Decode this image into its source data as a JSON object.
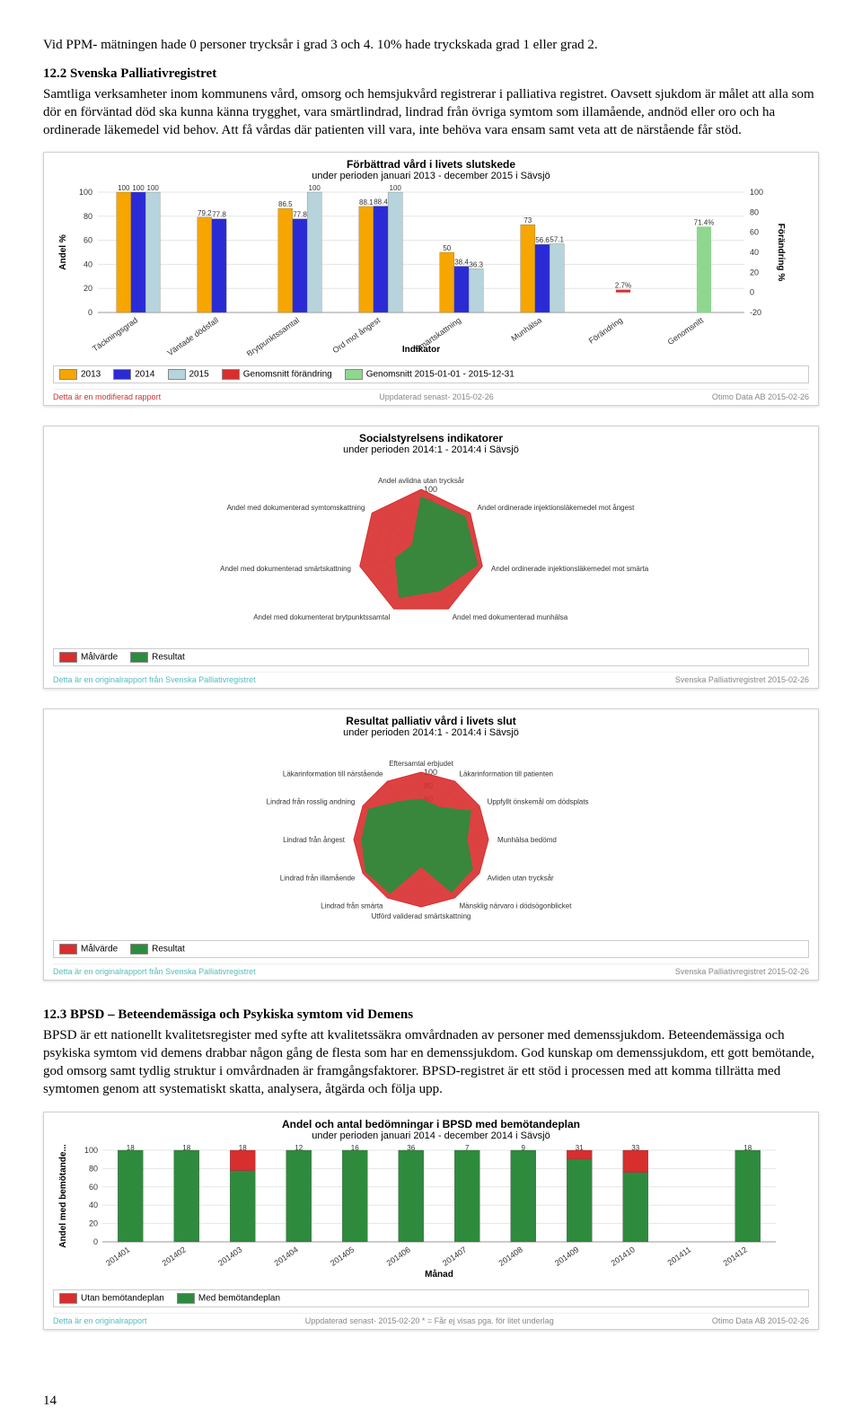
{
  "intro": {
    "p1": "Vid PPM- mätningen hade 0 personer trycksår i grad 3 och 4. 10% hade tryckskada grad 1 eller grad 2.",
    "h1": "12.2 Svenska Palliativregistret",
    "p2": "Samtliga verksamheter inom kommunens vård, omsorg och hemsjukvård registrerar i palliativa registret. Oavsett sjukdom är målet att alla som dör en förväntad död ska kunna känna trygghet, vara smärtlindrad, lindrad från övriga symtom som illamående, andnöd eller oro och ha ordinerade läkemedel vid behov. Att få vårdas där patienten vill vara, inte behöva vara ensam samt veta att de närstående får stöd."
  },
  "chart1": {
    "title": "Förbättrad vård i livets slutskede",
    "subtitle": "under perioden januari 2013 - december 2015 i  Sävsjö",
    "ylabel": "Andel %",
    "y2label": "Förändring %",
    "xaxis": "Indikator",
    "ymin": 0,
    "ymax": 100,
    "ystep": 20,
    "y2min": -20,
    "y2max": 100,
    "categories": [
      "Täckningsgrad",
      "Väntade dödsfall",
      "Brytpunktssamtal",
      "Ord mot ångest",
      "Smärtskattning",
      "Munhälsa",
      "Förändring",
      "Genomsnitt"
    ],
    "series": {
      "2013": [
        100,
        79.2,
        86.5,
        88.1,
        50,
        73,
        null,
        null
      ],
      "2014": [
        100,
        77.8,
        77.8,
        88.4,
        38.4,
        56.6,
        null,
        null
      ],
      "2015": [
        100,
        null,
        100,
        100,
        36.3,
        57.1,
        null,
        null
      ],
      "forandring": [
        null,
        null,
        null,
        null,
        null,
        null,
        2.7,
        null
      ],
      "genomsnitt": [
        null,
        null,
        null,
        null,
        null,
        null,
        null,
        71.4
      ]
    },
    "colors": {
      "2013": "#f7a500",
      "2014": "#2b2bd6",
      "2015": "#b7d4dc",
      "forandring": "#d82e2e",
      "genomsnitt": "#8fd68f"
    },
    "legend": [
      "2013",
      "2014",
      "2015",
      "Genomsnitt förändring",
      "Genomsnitt 2015-01-01 - 2015-12-31"
    ],
    "modified": "Detta är en modifierad rapport",
    "updated": "Uppdaterad senast- 2015-02-26",
    "right": "Otimo Data AB 2015-02-26"
  },
  "chart2": {
    "title": "Socialstyrelsens indikatorer",
    "subtitle": "under perioden 2014:1 - 2014:4 i Sävsjö",
    "toplabel": "Andel avlidna utan trycksår",
    "axes": [
      "Andel avlidna utan trycksår",
      "Andel ordinerade injektionsläkemedel mot ångest",
      "Andel ordinerade injektionsläkemedel mot smärta",
      "Andel med dokumenterad munhälsa",
      "Andel med dokumenterat brytpunktssamtal",
      "Andel med dokumenterad smärtskattning",
      "Andel med dokumenterad symtomskattning"
    ],
    "mal": [
      100,
      100,
      100,
      100,
      100,
      100,
      100
    ],
    "resultat": [
      88,
      90,
      92,
      68,
      80,
      42,
      18
    ],
    "colors": {
      "mal": "#d82e2e",
      "resultat": "#2e8b3d"
    },
    "legend": [
      "Målvärde",
      "Resultat"
    ],
    "footL": "Detta är en originalrapport från Svenska Palliativregistret",
    "footR": "Svenska Palliativregistret 2015-02-26"
  },
  "chart3": {
    "title": "Resultat palliativ vård i livets slut",
    "subtitle": "under perioden 2014:1 - 2014:4 i Sävsjö",
    "toplabel": "Eftersamtal erbjudet",
    "axes": [
      "Eftersamtal erbjudet",
      "Läkarinformation till patienten",
      "Uppfyllt önskemål om dödsplats",
      "Munhälsa bedömd",
      "Avliden utan trycksår",
      "Mänsklig närvaro i dödsögonblicket",
      "Utförd validerad smärtskattning",
      "Lindrad från smärta",
      "Lindrad från illamående",
      "Lindrad från ångest",
      "Lindrad från rosslig andning",
      "Läkarinformation till närstående"
    ],
    "mal": [
      100,
      100,
      100,
      100,
      100,
      100,
      100,
      100,
      100,
      100,
      100,
      100
    ],
    "resultat": [
      60,
      55,
      85,
      68,
      88,
      90,
      40,
      92,
      95,
      88,
      90,
      65
    ],
    "colors": {
      "mal": "#d82e2e",
      "resultat": "#2e8b3d"
    },
    "legend": [
      "Målvärde",
      "Resultat"
    ],
    "footL": "Detta är en originalrapport från Svenska Palliativregistret",
    "footR": "Svenska Palliativregistret 2015-02-26"
  },
  "section2": {
    "h": "12.3 BPSD – Beteendemässiga och Psykiska symtom vid Demens",
    "p": "BPSD är ett nationellt kvalitetsregister med syfte att kvalitetssäkra omvårdnaden av personer med demenssjukdom. Beteendemässiga och psykiska symtom vid demens drabbar någon gång de flesta som har en demenssjukdom. God kunskap om demenssjukdom, ett gott bemötande, god omsorg samt tydlig struktur i omvårdnaden är framgångsfaktorer.  BPSD-registret är ett stöd i processen med att komma tillrätta med symtomen genom att systematiskt skatta, analysera, åtgärda och följa upp."
  },
  "chart4": {
    "title": "Andel och antal bedömningar i BPSD med bemötandeplan",
    "subtitle": "under perioden januari 2014 - december 2014 i  Sävsjö",
    "ylabel": "Andel med bemötande...",
    "xaxis": "Månad",
    "months": [
      "201401",
      "201402",
      "201403",
      "201404",
      "201405",
      "201406",
      "201407",
      "201408",
      "201409",
      "201410",
      "201411",
      "201412"
    ],
    "counts": [
      18,
      18,
      18,
      12,
      16,
      36,
      7,
      9,
      31,
      33,
      0,
      18
    ],
    "utan": [
      0,
      0,
      4,
      0,
      0,
      0,
      0,
      0,
      3,
      8,
      0,
      0
    ],
    "colors": {
      "med": "#2e8b3d",
      "utan": "#d82e2e",
      "bar_border": "#444"
    },
    "legend": [
      "Utan bemötandeplan",
      "Med bemötandeplan"
    ],
    "footL": "Detta är en originalrapport",
    "footM": "Uppdaterad senast- 2015-02-20    * = Får ej visas pga. för litet underlag",
    "footR": "Otimo Data AB 2015-02-26"
  },
  "pagenum": "14"
}
